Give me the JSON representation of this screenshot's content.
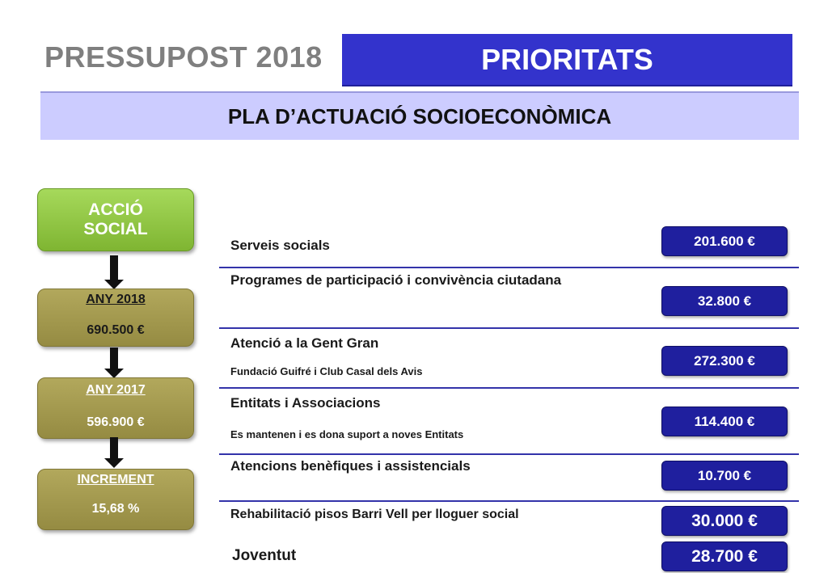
{
  "header": {
    "title": "PRESSUPOST 2018",
    "section": "PRIORITATS",
    "subtitle": "PLA D’ACTUACIÓ SOCIOECONÒMICA"
  },
  "sidebar": {
    "category": "ACCIÓ\nSOCIAL",
    "year_2018": {
      "label": "ANY 2018",
      "value": "690.500 €"
    },
    "year_2017": {
      "label": "ANY 2017",
      "value": "596.900 €"
    },
    "increment": {
      "label": "INCREMENT",
      "value": "15,68 %"
    }
  },
  "items": [
    {
      "title": "Serveis socials",
      "amount": "201.600 €"
    },
    {
      "title": "Programes de participació i convivència ciutadana",
      "amount": "32.800 €"
    },
    {
      "title": "Atenció a la Gent Gran",
      "subtitle": "Fundació Guifré i Club Casal dels Avis",
      "amount": "272.300 €"
    },
    {
      "title": "Entitats i Associacions",
      "subtitle": "Es mantenen i es dona suport a noves Entitats",
      "amount": "114.400 €"
    },
    {
      "title": "Atencions benèfiques i assistencials",
      "amount": "10.700 €"
    },
    {
      "title": "Rehabilitació pisos Barri Vell per lloguer social",
      "amount": "30.000 €"
    },
    {
      "title": "Joventut",
      "amount": "28.700 €"
    }
  ],
  "colors": {
    "title_gray": "#7f7f7f",
    "primary_blue": "#3333cc",
    "light_lavender": "#ccccff",
    "amount_blue": "#1f1f9e",
    "accent_green": "#8cc43f",
    "olive": "#a39a4d"
  }
}
